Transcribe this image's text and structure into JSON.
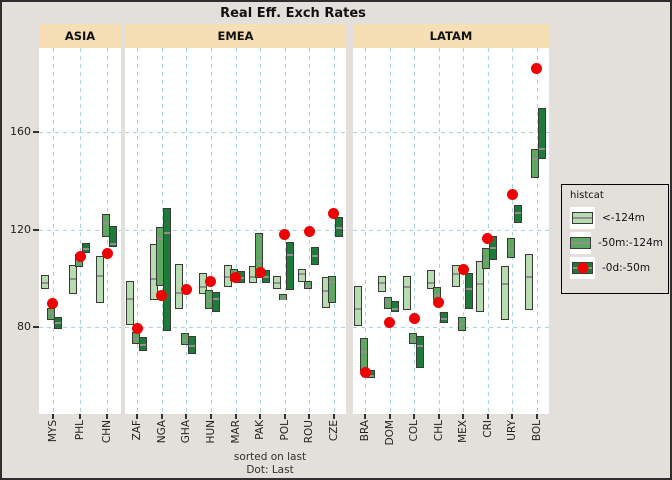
{
  "title": "Real Eff. Exch Rates",
  "caption": {
    "line1": "sorted on last",
    "line2": "Dot: Last"
  },
  "legend": {
    "title": "histcat",
    "items": [
      {
        "label": "<-124m",
        "category": "lt124",
        "dot": false
      },
      {
        "label": "-50m:-124m",
        "category": "m50to124",
        "dot": false
      },
      {
        "label": "-0d:-50m",
        "category": "d0to50",
        "dot": true
      }
    ]
  },
  "colors": {
    "outer": "#e3e0db",
    "strip": "#f6dfb4",
    "panel": "#ffffff",
    "grid": "#a9d3e0",
    "lt124": "#b7dcb0",
    "m50to124": "#5fa85f",
    "d0to50": "#1e7a38",
    "red": "#ee0202",
    "boxborder": "#3a3a3a",
    "midline": "#909090"
  },
  "y_axis": {
    "ticks": [
      80,
      120,
      160
    ]
  },
  "chart_data": {
    "type": "bar",
    "subtype": "dodged floating range boxes (min/mid/max per history window) with red dot = last value",
    "title": "Real Eff. Exch Rates",
    "legend_title": "histcat",
    "legend_entries": [
      "<-124m",
      "-50m:-124m",
      "-0d:-50m"
    ],
    "ylim": [
      44,
      195
    ],
    "yticks": [
      80,
      120,
      160
    ],
    "grid": true,
    "facets": [
      {
        "name": "ASIA",
        "countries": [
          {
            "code": "MYS",
            "lt124": {
              "lo": 95.5,
              "hi": 101.5,
              "mid": 98.5
            },
            "m50to124": {
              "lo": 83,
              "hi": 88,
              "mid": 86
            },
            "d0to50": {
              "lo": 79,
              "hi": 84,
              "mid": 82
            },
            "last": 89.5
          },
          {
            "code": "PHL",
            "lt124": {
              "lo": 93.5,
              "hi": 105.5,
              "mid": 100
            },
            "m50to124": {
              "lo": 104.5,
              "hi": 110,
              "mid": 107.5
            },
            "d0to50": {
              "lo": 110.5,
              "hi": 114.5,
              "mid": 112.5
            },
            "last": 109
          },
          {
            "code": "CHN",
            "lt124": {
              "lo": 90,
              "hi": 109,
              "mid": 101.5
            },
            "m50to124": {
              "lo": 117,
              "hi": 126.5,
              "mid": 123
            },
            "d0to50": {
              "lo": 113,
              "hi": 121.5,
              "mid": 114.5
            },
            "last": 110
          }
        ]
      },
      {
        "name": "EMEA",
        "countries": [
          {
            "code": "ZAF",
            "lt124": {
              "lo": 81,
              "hi": 99,
              "mid": 92
            },
            "m50to124": {
              "lo": 73,
              "hi": 78,
              "mid": 75.5
            },
            "d0to50": {
              "lo": 70,
              "hi": 76,
              "mid": 73
            },
            "last": 79.5
          },
          {
            "code": "NGA",
            "lt124": {
              "lo": 91,
              "hi": 114,
              "mid": 100
            },
            "m50to124": {
              "lo": 97,
              "hi": 121,
              "mid": 116.5
            },
            "d0to50": {
              "lo": 78.5,
              "hi": 129,
              "mid": 119
            },
            "last": 93
          },
          {
            "code": "GHA",
            "lt124": {
              "lo": 87.5,
              "hi": 106,
              "mid": 94.5
            },
            "m50to124": {
              "lo": 72.5,
              "hi": 77.5,
              "mid": 75
            },
            "d0to50": {
              "lo": 69,
              "hi": 76.5,
              "mid": 72.5
            },
            "last": 95.5
          },
          {
            "code": "HUN",
            "lt124": {
              "lo": 93.5,
              "hi": 102,
              "mid": 97
            },
            "m50to124": {
              "lo": 87.5,
              "hi": 95,
              "mid": 91
            },
            "d0to50": {
              "lo": 86,
              "hi": 94.5,
              "mid": 92
            },
            "last": 98.5
          },
          {
            "code": "MAR",
            "lt124": {
              "lo": 96.5,
              "hi": 105.5,
              "mid": 101
            },
            "m50to124": {
              "lo": 99,
              "hi": 104,
              "mid": 101.5
            },
            "d0to50": {
              "lo": 98,
              "hi": 103,
              "mid": 100.5
            },
            "last": 100.5
          },
          {
            "code": "PAK",
            "lt124": {
              "lo": 98,
              "hi": 105,
              "mid": 101
            },
            "m50to124": {
              "lo": 100,
              "hi": 118.5,
              "mid": 107.5
            },
            "d0to50": {
              "lo": 98,
              "hi": 103.5,
              "mid": 101
            },
            "last": 102.5
          },
          {
            "code": "POL",
            "lt124": {
              "lo": 95.5,
              "hi": 101,
              "mid": 98.5
            },
            "m50to124": {
              "lo": 91,
              "hi": 93.5,
              "mid": 92
            },
            "d0to50": {
              "lo": 95,
              "hi": 115,
              "mid": 110
            },
            "last": 118
          },
          {
            "code": "ROU",
            "lt124": {
              "lo": 98.5,
              "hi": 104,
              "mid": 102
            },
            "m50to124": {
              "lo": 95.5,
              "hi": 99,
              "mid": 97
            },
            "d0to50": {
              "lo": 105.5,
              "hi": 113,
              "mid": 109.5
            },
            "last": 119
          },
          {
            "code": "CZE",
            "lt124": {
              "lo": 88,
              "hi": 100.5,
              "mid": 95
            },
            "m50to124": {
              "lo": 90,
              "hi": 101,
              "mid": 99
            },
            "d0to50": {
              "lo": 117,
              "hi": 125,
              "mid": 121
            },
            "last": 126.5
          }
        ]
      },
      {
        "name": "LATAM",
        "countries": [
          {
            "code": "BRA",
            "lt124": {
              "lo": 80.5,
              "hi": 97,
              "mid": 88
            },
            "m50to124": {
              "lo": 62,
              "hi": 75.5,
              "mid": 70
            },
            "d0to50": {
              "lo": 59,
              "hi": 62.5,
              "mid": 60.5
            },
            "last": 61.5
          },
          {
            "code": "DOM",
            "lt124": {
              "lo": 94.5,
              "hi": 101,
              "mid": 98.5
            },
            "m50to124": {
              "lo": 87.5,
              "hi": 92.5,
              "mid": 90.5
            },
            "d0to50": {
              "lo": 86,
              "hi": 90.5,
              "mid": 88
            },
            "last": 82
          },
          {
            "code": "COL",
            "lt124": {
              "lo": 87,
              "hi": 101,
              "mid": 97
            },
            "m50to124": {
              "lo": 73,
              "hi": 77.5,
              "mid": 75
            },
            "d0to50": {
              "lo": 63,
              "hi": 76.5,
              "mid": 72.5
            },
            "last": 83.5
          },
          {
            "code": "CHL",
            "lt124": {
              "lo": 95.5,
              "hi": 103.5,
              "mid": 98.5
            },
            "m50to124": {
              "lo": 91,
              "hi": 96.5,
              "mid": 93.5
            },
            "d0to50": {
              "lo": 81.5,
              "hi": 86,
              "mid": 83.5
            },
            "last": 90
          },
          {
            "code": "MEX",
            "lt124": {
              "lo": 96.5,
              "hi": 105.5,
              "mid": 102
            },
            "m50to124": {
              "lo": 78.5,
              "hi": 84,
              "mid": 81.5
            },
            "d0to50": {
              "lo": 87.5,
              "hi": 102,
              "mid": 96
            },
            "last": 103.5
          },
          {
            "code": "CRI",
            "lt124": {
              "lo": 86,
              "hi": 107,
              "mid": 98
            },
            "m50to124": {
              "lo": 104,
              "hi": 112.5,
              "mid": 108
            },
            "d0to50": {
              "lo": 107.5,
              "hi": 117.5,
              "mid": 113
            },
            "last": 116.5
          },
          {
            "code": "URY",
            "lt124": {
              "lo": 83,
              "hi": 105,
              "mid": 98
            },
            "m50to124": {
              "lo": 108.5,
              "hi": 116.5,
              "mid": 112
            },
            "d0to50": {
              "lo": 122.5,
              "hi": 130,
              "mid": 127
            },
            "last": 134.5
          },
          {
            "code": "BOL",
            "lt124": {
              "lo": 87,
              "hi": 110,
              "mid": 101
            },
            "m50to124": {
              "lo": 141,
              "hi": 153,
              "mid": 149.5
            },
            "d0to50": {
              "lo": 149,
              "hi": 170,
              "mid": 153.5
            },
            "last": 186
          }
        ]
      }
    ]
  }
}
